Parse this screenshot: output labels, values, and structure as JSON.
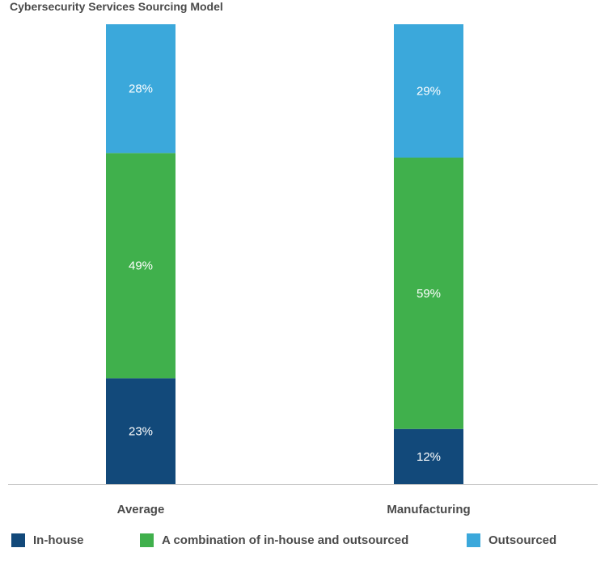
{
  "chart_data": {
    "type": "bar",
    "stacked": true,
    "percent": true,
    "title": "Cybersecurity Services Sourcing Model",
    "categories": [
      "Average",
      "Manufacturing"
    ],
    "series": [
      {
        "name": "In-house",
        "values": [
          23,
          12
        ],
        "color": "#12497a"
      },
      {
        "name": "A combination of in-house and outsourced",
        "values": [
          49,
          59
        ],
        "color": "#40b04c"
      },
      {
        "name": "Outsourced",
        "values": [
          28,
          29
        ],
        "color": "#3ba8db"
      }
    ],
    "xlabel": "",
    "ylabel": "",
    "ylim": [
      0,
      100
    ],
    "grid": false,
    "legend_position": "bottom"
  }
}
